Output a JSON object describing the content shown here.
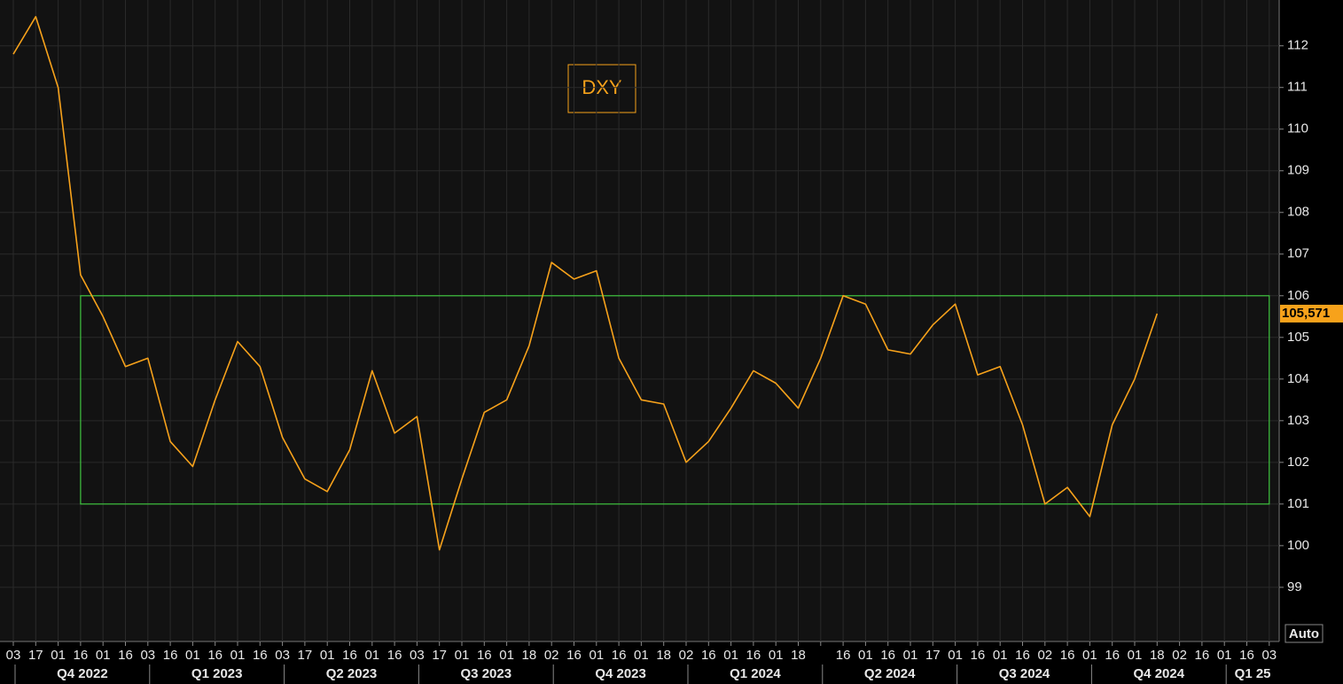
{
  "chart_data": {
    "type": "line",
    "annotation": "DXY",
    "button": "Auto",
    "categories": [
      "03",
      "17",
      "01",
      "16",
      "01",
      "16",
      "03",
      "16",
      "01",
      "16",
      "01",
      "16",
      "03",
      "17",
      "01",
      "16",
      "01",
      "16",
      "03",
      "17",
      "01",
      "16",
      "01",
      "18",
      "02",
      "16",
      "01",
      "16",
      "01",
      "18",
      "02",
      "16",
      "01",
      "16",
      "01",
      "18",
      null,
      "16",
      "01",
      "16",
      "01",
      "17",
      "01",
      "16",
      "01",
      "16",
      "02",
      "16",
      "01",
      "16",
      "01",
      "18",
      "02",
      "16",
      "01",
      "16",
      "03"
    ],
    "x_groups": [
      {
        "label": "Q4 2022",
        "span": [
          0,
          5
        ]
      },
      {
        "label": "Q1 2023",
        "span": [
          6,
          11
        ]
      },
      {
        "label": "Q2 2023",
        "span": [
          12,
          17
        ]
      },
      {
        "label": "Q3 2023",
        "span": [
          18,
          23
        ]
      },
      {
        "label": "Q4 2023",
        "span": [
          24,
          29
        ]
      },
      {
        "label": "Q1 2024",
        "span": [
          30,
          35
        ]
      },
      {
        "label": "Q2 2024",
        "span": [
          36,
          41
        ]
      },
      {
        "label": "Q3 2024",
        "span": [
          42,
          47
        ]
      },
      {
        "label": "Q4 2024",
        "span": [
          48,
          53
        ]
      },
      {
        "label": "Q1 25",
        "span": [
          54,
          56
        ]
      }
    ],
    "series": [
      {
        "color": "#f7a21b",
        "values": [
          111.8,
          112.7,
          111,
          106.5,
          105.5,
          104.3,
          104.5,
          102.5,
          101.9,
          103.5,
          104.9,
          104.3,
          102.6,
          101.6,
          101.3,
          102.3,
          104.2,
          102.7,
          103.1,
          99.9,
          101.6,
          103.2,
          103.5,
          104.8,
          106.8,
          106.4,
          106.6,
          104.5,
          103.5,
          103.4,
          102,
          102.5,
          103.3,
          104.2,
          103.9,
          103.3,
          104.5,
          106,
          105.8,
          104.7,
          104.6,
          105.3,
          105.8,
          104.1,
          104.3,
          102.9,
          101,
          101.4,
          100.7,
          102.9,
          104,
          105.571,
          null,
          null,
          null,
          null,
          null
        ],
        "value_labels": [
          null,
          null,
          null,
          null,
          null,
          null,
          null,
          null,
          null,
          null,
          null,
          null,
          null,
          null,
          null,
          null,
          null,
          null,
          null,
          null,
          null,
          null,
          null,
          null,
          null,
          null,
          null,
          null,
          null,
          null,
          null,
          null,
          null,
          null,
          null,
          null,
          null,
          null,
          null,
          null,
          null,
          null,
          null,
          null,
          null,
          null,
          null,
          null,
          null,
          null,
          null,
          "105,571",
          null,
          null,
          null,
          null,
          null
        ]
      }
    ],
    "range_box": {
      "low": 101,
      "high": 106,
      "from": 3,
      "to": 56,
      "color": "#3ec43e"
    },
    "ylim": [
      97.7,
      113.1
    ],
    "yticks": [
      99,
      100,
      101,
      102,
      103,
      104,
      105,
      106,
      107,
      108,
      109,
      110,
      111,
      112
    ],
    "grid": true
  }
}
